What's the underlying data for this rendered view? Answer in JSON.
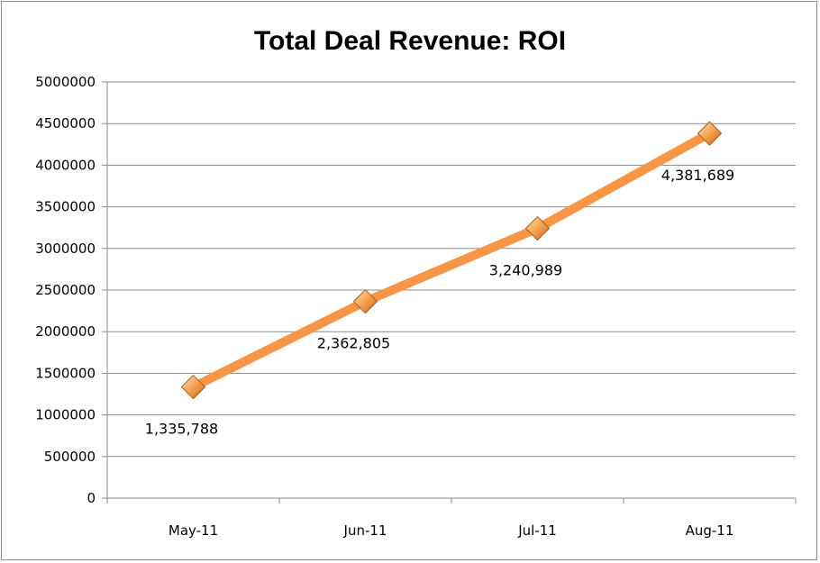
{
  "chart_data": {
    "type": "line",
    "title": "Total Deal Revenue: ROI",
    "xlabel": "",
    "ylabel": "",
    "categories": [
      "May-11",
      "Jun-11",
      "Jul-11",
      "Aug-11"
    ],
    "series": [
      {
        "values": [
          1335788,
          2362805,
          3240989,
          4381689
        ],
        "data_labels": [
          "1,335,788",
          "2,362,805",
          "3,240,989",
          "4,381,689"
        ],
        "color": "#f79646",
        "marker": "diamond"
      }
    ],
    "ylim": [
      0,
      5000000
    ],
    "yticks": [
      "0",
      "500000",
      "1000000",
      "1500000",
      "2000000",
      "2500000",
      "3000000",
      "3500000",
      "4000000",
      "4500000",
      "5000000"
    ],
    "grid": true,
    "legend": "none"
  }
}
